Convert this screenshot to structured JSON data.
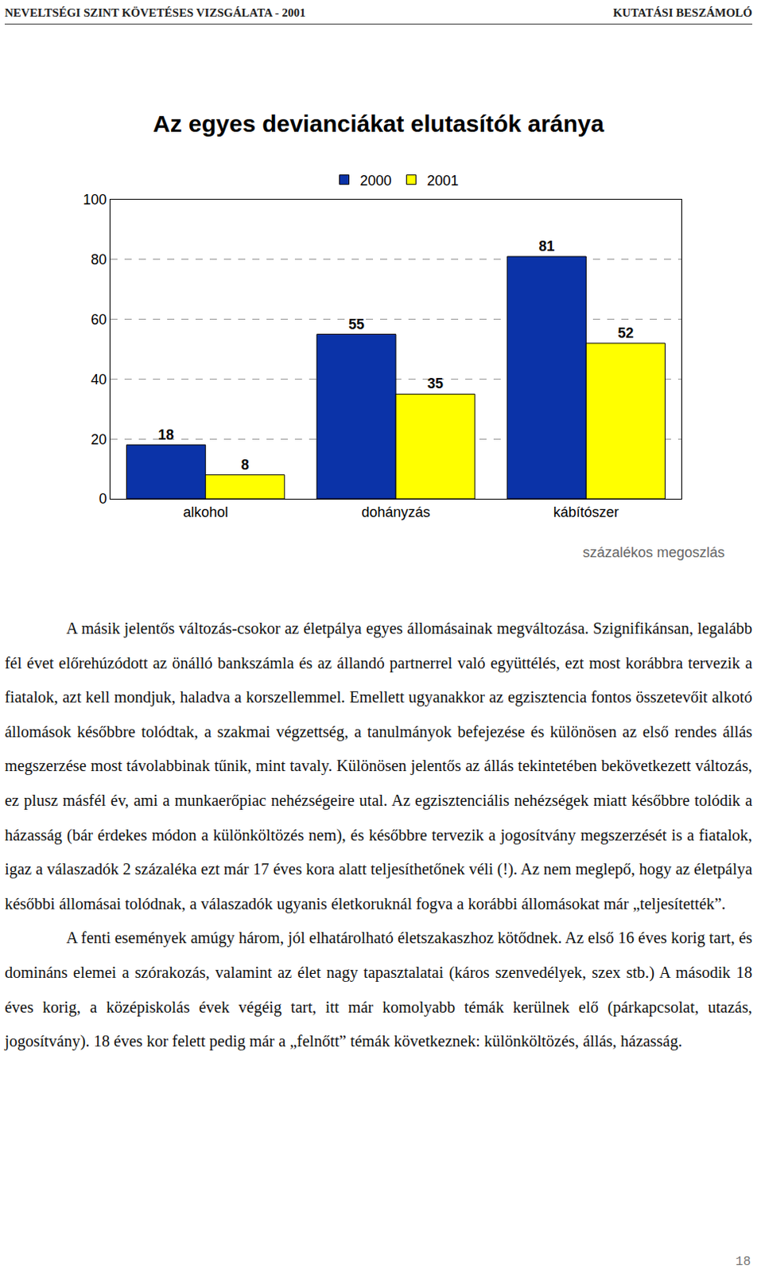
{
  "header": {
    "left": "NEVELTSÉGI SZINT KÖVETÉSES VIZSGÁLATA - 2001",
    "right": "KUTATÁSI BESZÁMOLÓ"
  },
  "chart_data": {
    "type": "bar",
    "title": "Az egyes devianciákat elutasítók aránya",
    "categories": [
      "alkohol",
      "dohányzás",
      "kábítószer"
    ],
    "series": [
      {
        "name": "2000",
        "color": "#0B33A8",
        "values": [
          18,
          55,
          81
        ]
      },
      {
        "name": "2001",
        "color": "#FFFF00",
        "values": [
          8,
          35,
          52
        ]
      }
    ],
    "ylim": [
      0,
      100
    ],
    "yticks": [
      0,
      20,
      40,
      60,
      80,
      100
    ],
    "grid": true,
    "legend": "top",
    "data_labels": true,
    "annotation": "százalékos megoszlás"
  },
  "body": {
    "paragraphs": [
      "A másik jelentős változás-csokor az életpálya egyes állomásainak megváltozása. Szignifikánsan, legalább fél évet előrehúzódott az önálló bankszámla és az állandó partnerrel való együttélés, ezt most korábbra tervezik a fiatalok, azt kell mondjuk, haladva a korszellemmel. Emellett ugyanakkor az egzisztencia fontos összetevőit alkotó állomások későbbre tolódtak, a szakmai végzettség, a tanulmányok befejezése és különösen az első rendes állás megszerzése most távolabbinak tűnik, mint tavaly. Különösen jelentős az állás tekintetében bekövetkezett változás, ez plusz másfél év, ami a munkaerőpiac nehézségeire utal. Az egzisztenciális nehézségek miatt későbbre tolódik a házasság (bár érdekes módon a különköltözés nem), és későbbre tervezik a jogosítvány megszerzését is a fiatalok, igaz a válaszadók 2 százaléka ezt már 17 éves kora alatt teljesíthetőnek véli (!). Az nem meglepő, hogy az életpálya későbbi állomásai tolódnak, a válaszadók ugyanis életkoruknál fogva a korábbi állomásokat már „teljesítették”.",
      "A fenti események amúgy három, jól elhatárolható életszakaszhoz kötődnek. Az első 16 éves korig tart, és domináns elemei a szórakozás, valamint az élet nagy tapasztalatai (káros szenvedélyek, szex stb.) A második 18 éves korig, a középiskolás évek végéig tart, itt már komolyabb témák kerülnek elő (párkapcsolat, utazás, jogosítvány). 18 éves kor felett pedig már a „felnőtt” témák következnek: különköltözés, állás, házasság."
    ]
  },
  "page_number": 18
}
